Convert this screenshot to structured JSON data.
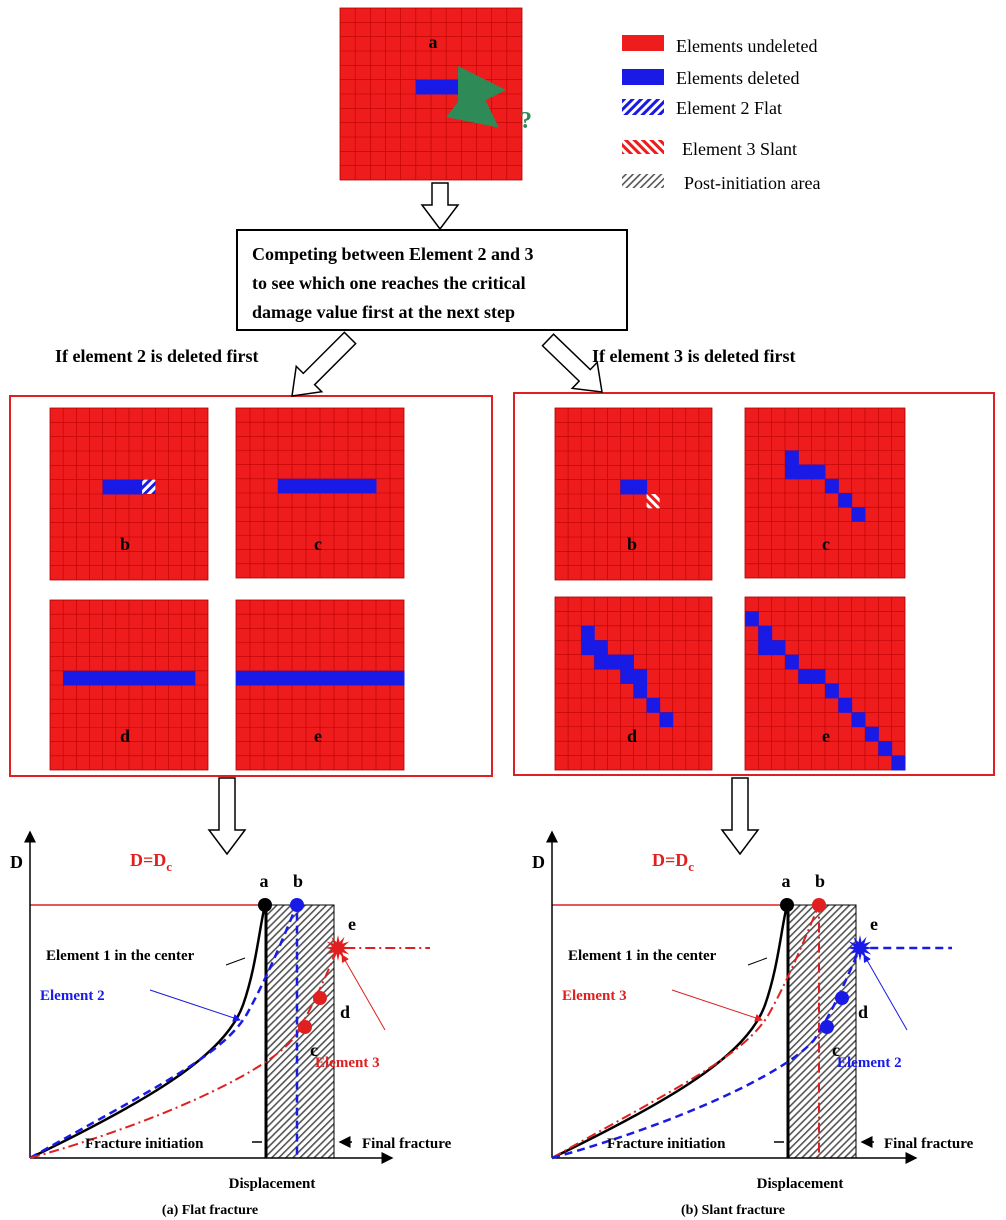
{
  "top_mesh": {
    "label": "a",
    "question": "?"
  },
  "legend": [
    "Elements undeleted",
    "Elements deleted",
    "Element 2 Flat",
    "Element 3 Slant",
    "Post-initiation area"
  ],
  "flow_box": [
    "Competing between Element 2 and 3",
    "to see which one reaches the critical",
    "damage value first at the next step"
  ],
  "branches": [
    "If element 2 is deleted first",
    "If element 3 is deleted first"
  ],
  "left_panels": [
    "b",
    "c",
    "d",
    "e"
  ],
  "right_panels": [
    "b",
    "c",
    "d",
    "e"
  ],
  "graph_a": {
    "y_label": "D",
    "dc_label": {
      "main": "D=D",
      "sub": "c"
    },
    "points": [
      "a",
      "b",
      "c",
      "d",
      "e"
    ],
    "element1": "Element 1 in the center",
    "element_blue": "Element 2",
    "element_red": "Element 3",
    "initiation": "Fracture initiation",
    "final": "Final fracture",
    "x_label": "Displacement",
    "caption": "(a) Flat fracture"
  },
  "graph_b": {
    "y_label": "D",
    "dc_label": {
      "main": "D=D",
      "sub": "c"
    },
    "points": [
      "a",
      "b",
      "c",
      "d",
      "e"
    ],
    "element1": "Element 1 in the center",
    "element_red": "Element 3",
    "element_blue": "Element 2",
    "initiation": "Fracture initiation",
    "final": "Final fracture",
    "x_label": "Displacement",
    "caption": "(b) Slant fracture"
  }
}
